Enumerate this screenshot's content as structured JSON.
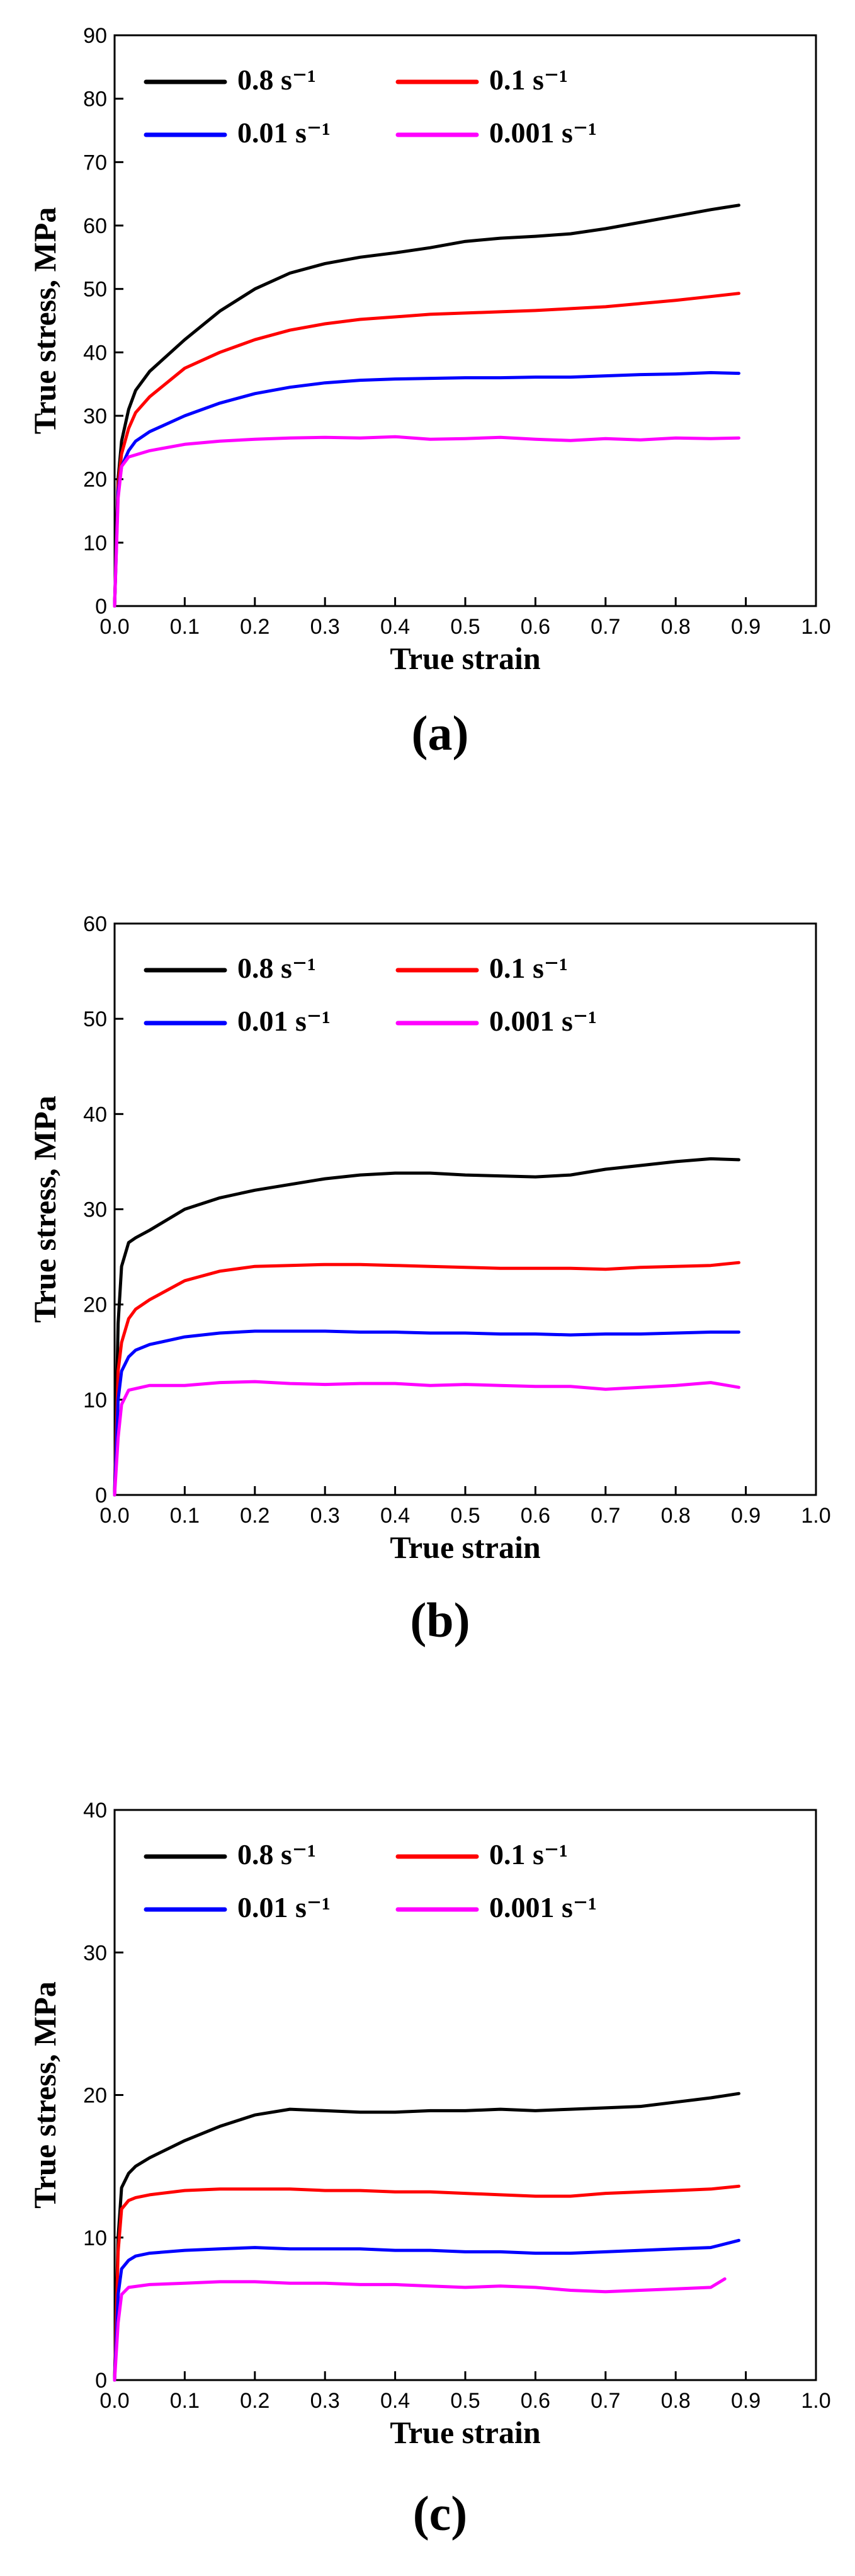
{
  "chart_data": [
    {
      "type": "line",
      "panel_label": "(a)",
      "xlabel": "True strain",
      "ylabel": "True stress, MPa",
      "xlim": [
        0,
        1.0
      ],
      "ylim": [
        0,
        90
      ],
      "xticks": [
        "0.0",
        "0.1",
        "0.2",
        "0.3",
        "0.4",
        "0.5",
        "0.6",
        "0.7",
        "0.8",
        "0.9",
        "1.0"
      ],
      "yticks": [
        "0",
        "10",
        "20",
        "30",
        "40",
        "50",
        "60",
        "70",
        "80",
        "90"
      ],
      "grid": false,
      "legend_position": "top-left",
      "series": [
        {
          "name": "0.8 s⁻¹",
          "color": "#000000",
          "x": [
            0,
            0.005,
            0.01,
            0.02,
            0.03,
            0.05,
            0.1,
            0.15,
            0.2,
            0.25,
            0.3,
            0.35,
            0.4,
            0.45,
            0.5,
            0.55,
            0.6,
            0.65,
            0.7,
            0.75,
            0.8,
            0.85,
            0.89
          ],
          "y": [
            0,
            20,
            26,
            31,
            34,
            37,
            42,
            46.5,
            50,
            52.5,
            54,
            55,
            55.7,
            56.5,
            57.5,
            58,
            58.3,
            58.7,
            59.5,
            60.5,
            61.5,
            62.5,
            63.2
          ]
        },
        {
          "name": "0.1 s⁻¹",
          "color": "#ff0000",
          "x": [
            0,
            0.005,
            0.01,
            0.02,
            0.03,
            0.05,
            0.1,
            0.15,
            0.2,
            0.25,
            0.3,
            0.35,
            0.4,
            0.45,
            0.5,
            0.55,
            0.6,
            0.65,
            0.7,
            0.75,
            0.8,
            0.85,
            0.89
          ],
          "y": [
            0,
            19,
            24,
            28,
            30.5,
            33,
            37.5,
            40,
            42,
            43.5,
            44.5,
            45.2,
            45.6,
            46,
            46.2,
            46.4,
            46.6,
            46.9,
            47.2,
            47.7,
            48.2,
            48.8,
            49.3
          ]
        },
        {
          "name": "0.01 s⁻¹",
          "color": "#0000ff",
          "x": [
            0,
            0.005,
            0.01,
            0.02,
            0.03,
            0.05,
            0.1,
            0.15,
            0.2,
            0.25,
            0.3,
            0.35,
            0.4,
            0.45,
            0.5,
            0.55,
            0.6,
            0.65,
            0.7,
            0.75,
            0.8,
            0.85,
            0.89
          ],
          "y": [
            0,
            18,
            22,
            24.5,
            26,
            27.5,
            30,
            32,
            33.5,
            34.5,
            35.2,
            35.6,
            35.8,
            35.9,
            36,
            36,
            36.1,
            36.1,
            36.3,
            36.5,
            36.6,
            36.8,
            36.7
          ]
        },
        {
          "name": "0.001 s⁻¹",
          "color": "#ff00ff",
          "x": [
            0,
            0.005,
            0.01,
            0.02,
            0.05,
            0.1,
            0.15,
            0.2,
            0.25,
            0.3,
            0.35,
            0.4,
            0.45,
            0.5,
            0.55,
            0.6,
            0.65,
            0.7,
            0.75,
            0.8,
            0.85,
            0.89
          ],
          "y": [
            0,
            17,
            22,
            23.5,
            24.5,
            25.5,
            26,
            26.3,
            26.5,
            26.6,
            26.5,
            26.7,
            26.3,
            26.4,
            26.6,
            26.3,
            26.1,
            26.4,
            26.2,
            26.5,
            26.4,
            26.5
          ]
        }
      ]
    },
    {
      "type": "line",
      "panel_label": "(b)",
      "xlabel": "True strain",
      "ylabel": "True stress, MPa",
      "xlim": [
        0,
        1.0
      ],
      "ylim": [
        0,
        60
      ],
      "xticks": [
        "0.0",
        "0.1",
        "0.2",
        "0.3",
        "0.4",
        "0.5",
        "0.6",
        "0.7",
        "0.8",
        "0.9",
        "1.0"
      ],
      "yticks": [
        "0",
        "10",
        "20",
        "30",
        "40",
        "50",
        "60"
      ],
      "grid": false,
      "legend_position": "top-left",
      "series": [
        {
          "name": "0.8 s⁻¹",
          "color": "#000000",
          "x": [
            0,
            0.005,
            0.01,
            0.02,
            0.03,
            0.05,
            0.1,
            0.15,
            0.2,
            0.25,
            0.3,
            0.35,
            0.4,
            0.45,
            0.5,
            0.55,
            0.6,
            0.65,
            0.7,
            0.75,
            0.8,
            0.85,
            0.89
          ],
          "y": [
            0,
            18,
            24,
            26.5,
            27,
            27.8,
            30,
            31.2,
            32,
            32.6,
            33.2,
            33.6,
            33.8,
            33.8,
            33.6,
            33.5,
            33.4,
            33.6,
            34.2,
            34.6,
            35,
            35.3,
            35.2
          ]
        },
        {
          "name": "0.1 s⁻¹",
          "color": "#ff0000",
          "x": [
            0,
            0.005,
            0.01,
            0.02,
            0.03,
            0.05,
            0.1,
            0.15,
            0.2,
            0.25,
            0.3,
            0.35,
            0.4,
            0.45,
            0.5,
            0.55,
            0.6,
            0.65,
            0.7,
            0.75,
            0.8,
            0.85,
            0.89
          ],
          "y": [
            0,
            13,
            16,
            18.5,
            19.5,
            20.5,
            22.5,
            23.5,
            24,
            24.1,
            24.2,
            24.2,
            24.1,
            24,
            23.9,
            23.8,
            23.8,
            23.8,
            23.7,
            23.9,
            24,
            24.1,
            24.4
          ]
        },
        {
          "name": "0.01 s⁻¹",
          "color": "#0000ff",
          "x": [
            0,
            0.005,
            0.01,
            0.02,
            0.03,
            0.05,
            0.1,
            0.15,
            0.2,
            0.25,
            0.3,
            0.35,
            0.4,
            0.45,
            0.5,
            0.55,
            0.6,
            0.65,
            0.7,
            0.75,
            0.8,
            0.85,
            0.89
          ],
          "y": [
            0,
            10,
            13,
            14.5,
            15.2,
            15.8,
            16.6,
            17,
            17.2,
            17.2,
            17.2,
            17.1,
            17.1,
            17,
            17,
            16.9,
            16.9,
            16.8,
            16.9,
            16.9,
            17,
            17.1,
            17.1
          ]
        },
        {
          "name": "0.001 s⁻¹",
          "color": "#ff00ff",
          "x": [
            0,
            0.005,
            0.01,
            0.02,
            0.05,
            0.1,
            0.15,
            0.2,
            0.25,
            0.3,
            0.35,
            0.4,
            0.45,
            0.5,
            0.55,
            0.6,
            0.65,
            0.7,
            0.75,
            0.8,
            0.85,
            0.89
          ],
          "y": [
            0,
            6,
            9.5,
            11,
            11.5,
            11.5,
            11.8,
            11.9,
            11.7,
            11.6,
            11.7,
            11.7,
            11.5,
            11.6,
            11.5,
            11.4,
            11.4,
            11.1,
            11.3,
            11.5,
            11.8,
            11.3
          ]
        }
      ]
    },
    {
      "type": "line",
      "panel_label": "(c)",
      "xlabel": "True strain",
      "ylabel": "True stress, MPa",
      "xlim": [
        0,
        1.0
      ],
      "ylim": [
        0,
        40
      ],
      "xticks": [
        "0.0",
        "0.1",
        "0.2",
        "0.3",
        "0.4",
        "0.5",
        "0.6",
        "0.7",
        "0.8",
        "0.9",
        "1.0"
      ],
      "yticks": [
        "0",
        "10",
        "20",
        "30",
        "40"
      ],
      "grid": false,
      "legend_position": "top-left",
      "series": [
        {
          "name": "0.8 s⁻¹",
          "color": "#000000",
          "x": [
            0,
            0.005,
            0.01,
            0.02,
            0.03,
            0.05,
            0.1,
            0.15,
            0.2,
            0.25,
            0.3,
            0.35,
            0.4,
            0.45,
            0.5,
            0.55,
            0.6,
            0.65,
            0.7,
            0.75,
            0.8,
            0.85,
            0.89
          ],
          "y": [
            0,
            10,
            13.5,
            14.5,
            15,
            15.6,
            16.8,
            17.8,
            18.6,
            19,
            18.9,
            18.8,
            18.8,
            18.9,
            18.9,
            19,
            18.9,
            19,
            19.1,
            19.2,
            19.5,
            19.8,
            20.1
          ]
        },
        {
          "name": "0.1 s⁻¹",
          "color": "#ff0000",
          "x": [
            0,
            0.005,
            0.01,
            0.02,
            0.03,
            0.05,
            0.1,
            0.15,
            0.2,
            0.25,
            0.3,
            0.35,
            0.4,
            0.45,
            0.5,
            0.55,
            0.6,
            0.65,
            0.7,
            0.75,
            0.8,
            0.85,
            0.89
          ],
          "y": [
            0,
            9,
            12,
            12.6,
            12.8,
            13,
            13.3,
            13.4,
            13.4,
            13.4,
            13.3,
            13.3,
            13.2,
            13.2,
            13.1,
            13,
            12.9,
            12.9,
            13.1,
            13.2,
            13.3,
            13.4,
            13.6
          ]
        },
        {
          "name": "0.01 s⁻¹",
          "color": "#0000ff",
          "x": [
            0,
            0.005,
            0.01,
            0.02,
            0.03,
            0.05,
            0.1,
            0.15,
            0.2,
            0.25,
            0.3,
            0.35,
            0.4,
            0.45,
            0.5,
            0.55,
            0.6,
            0.65,
            0.7,
            0.75,
            0.8,
            0.85,
            0.89
          ],
          "y": [
            0,
            6,
            7.8,
            8.4,
            8.7,
            8.9,
            9.1,
            9.2,
            9.3,
            9.2,
            9.2,
            9.2,
            9.1,
            9.1,
            9,
            9,
            8.9,
            8.9,
            9,
            9.1,
            9.2,
            9.3,
            9.8
          ]
        },
        {
          "name": "0.001 s⁻¹",
          "color": "#ff00ff",
          "x": [
            0,
            0.005,
            0.01,
            0.02,
            0.05,
            0.1,
            0.15,
            0.2,
            0.25,
            0.3,
            0.35,
            0.4,
            0.45,
            0.5,
            0.55,
            0.6,
            0.65,
            0.7,
            0.75,
            0.8,
            0.85,
            0.87
          ],
          "y": [
            0,
            4,
            6,
            6.5,
            6.7,
            6.8,
            6.9,
            6.9,
            6.8,
            6.8,
            6.7,
            6.7,
            6.6,
            6.5,
            6.6,
            6.5,
            6.3,
            6.2,
            6.3,
            6.4,
            6.5,
            7.1
          ]
        }
      ]
    }
  ]
}
